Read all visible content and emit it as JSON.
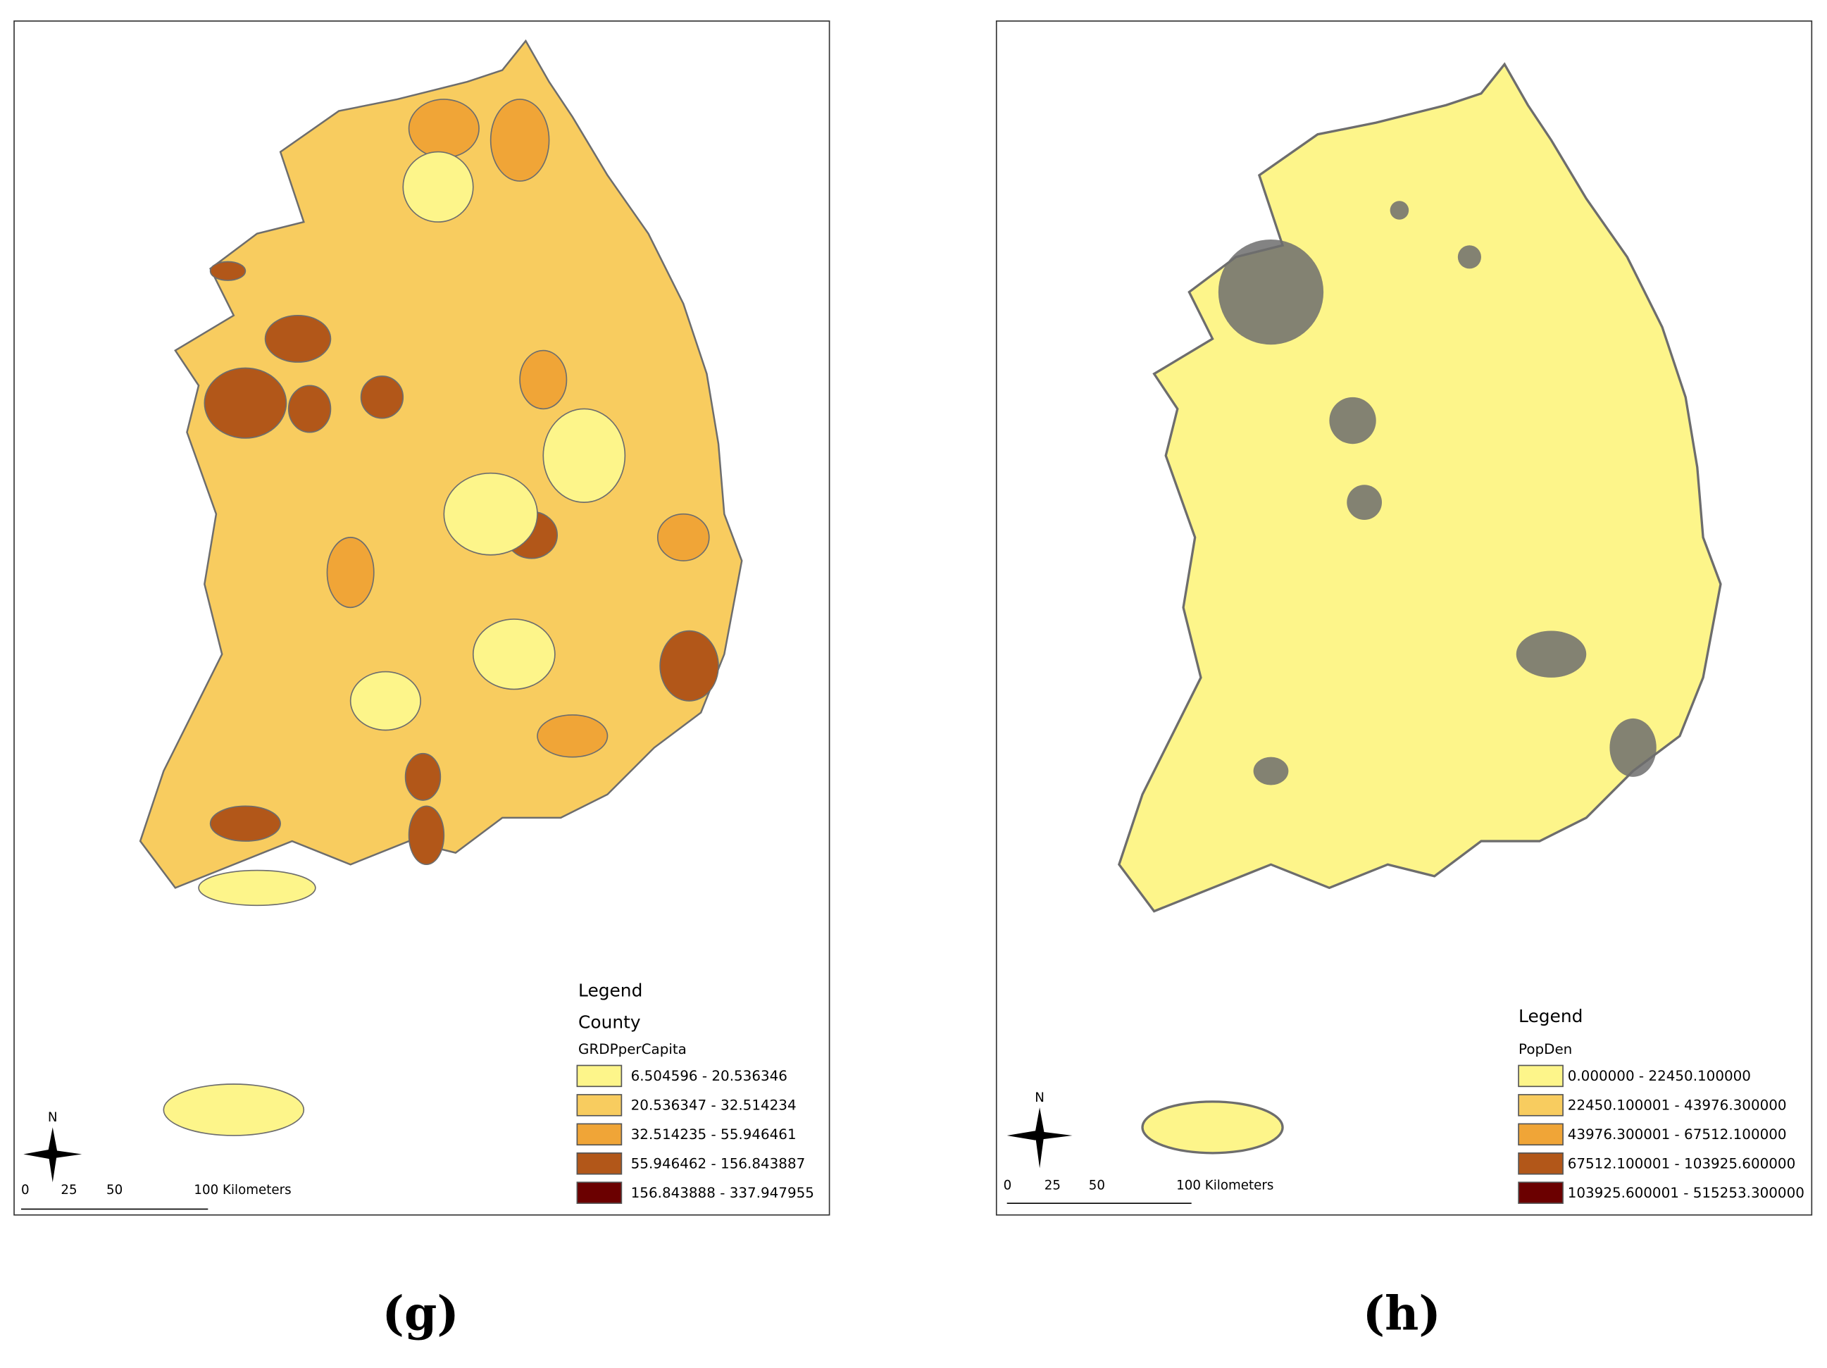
{
  "panels": [
    {
      "label": "(g)",
      "legend": {
        "title": "Legend",
        "layer": "County",
        "field": "GRDPperCapita",
        "classes": [
          {
            "label": "6.504596 - 20.536346",
            "color": "#fdf58a"
          },
          {
            "label": "20.536347 - 32.514234",
            "color": "#f8cc5f"
          },
          {
            "label": "32.514235 - 55.946461",
            "color": "#f0a537"
          },
          {
            "label": "55.946462 - 156.843887",
            "color": "#b25719"
          },
          {
            "label": "156.843888 - 337.947955",
            "color": "#6b0000"
          }
        ]
      },
      "scale_bar": {
        "north": "N",
        "ticks": [
          "0",
          "25",
          "50",
          "100 Kilometers"
        ]
      }
    },
    {
      "label": "(h)",
      "legend": {
        "title": "Legend",
        "field": "PopDen",
        "classes": [
          {
            "label": "0.000000 - 22450.100000",
            "color": "#fdf58a"
          },
          {
            "label": "22450.100001 - 43976.300000",
            "color": "#f8cc5f"
          },
          {
            "label": "43976.300001 - 67512.100000",
            "color": "#f0a537"
          },
          {
            "label": "67512.100001 - 103925.600000",
            "color": "#b25719"
          },
          {
            "label": "103925.600001 - 515253.300000",
            "color": "#6b0000"
          }
        ]
      },
      "scale_bar": {
        "north": "N",
        "ticks": [
          "0",
          "25",
          "50",
          "100 Kilometers"
        ]
      }
    }
  ]
}
